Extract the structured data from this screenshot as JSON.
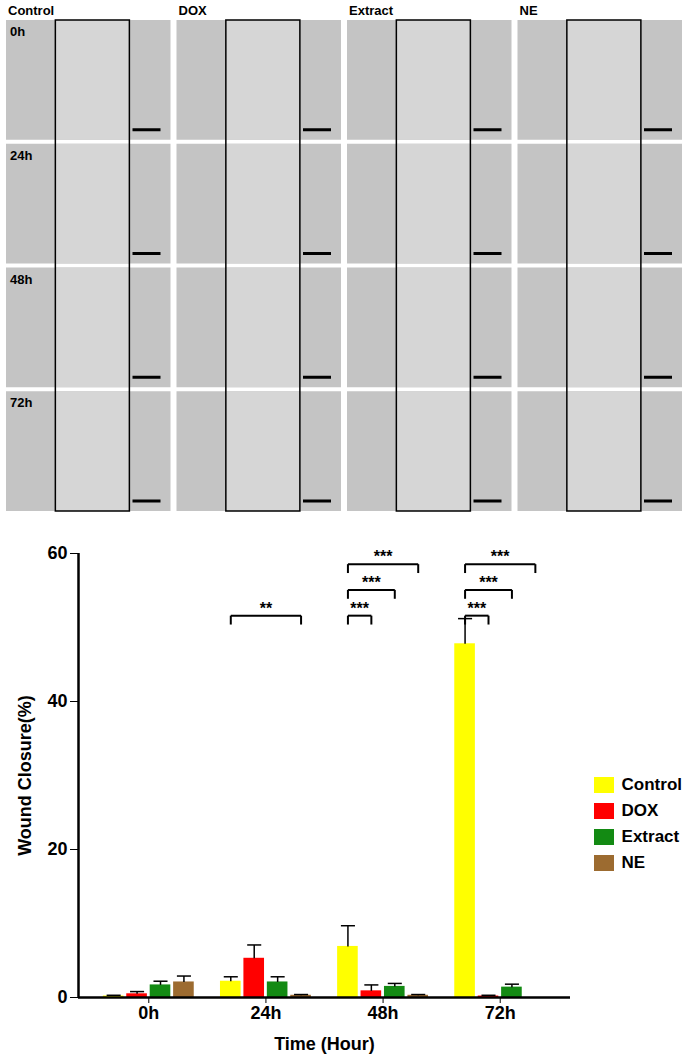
{
  "micrograph_panel": {
    "columns": [
      "Control",
      "DOX",
      "Extract",
      "NE"
    ],
    "rows": [
      "0h",
      "24h",
      "48h",
      "72h"
    ]
  },
  "chart_data": {
    "type": "bar",
    "xlabel": "Time (Hour)",
    "ylabel": "Wound Closure(%)",
    "categories": [
      "0h",
      "24h",
      "48h",
      "72h"
    ],
    "series": [
      {
        "name": "Control",
        "color": "#ffff00",
        "values": [
          0.2,
          2.2,
          6.9,
          47.8
        ],
        "errors": [
          0.1,
          0.6,
          2.8,
          3.4
        ]
      },
      {
        "name": "DOX",
        "color": "#ff0000",
        "values": [
          0.5,
          5.3,
          0.9,
          0.2
        ],
        "errors": [
          0.3,
          1.8,
          0.8,
          0.1
        ]
      },
      {
        "name": "Extract",
        "color": "#138a13",
        "values": [
          1.7,
          2.1,
          1.5,
          1.4
        ],
        "errors": [
          0.5,
          0.7,
          0.4,
          0.4
        ]
      },
      {
        "name": "NE",
        "color": "#9c6b30",
        "values": [
          2.1,
          0.3,
          0.3,
          0
        ],
        "errors": [
          0.8,
          0.1,
          0.1,
          0
        ]
      }
    ],
    "ylim": [
      0,
      60
    ],
    "yticks": [
      0,
      20,
      40,
      60
    ],
    "legend": "right",
    "annotations": [
      {
        "category": "24h",
        "from": "Control",
        "to": "NE",
        "label": "**"
      },
      {
        "category": "48h",
        "from": "Control",
        "to": "DOX",
        "label": "***"
      },
      {
        "category": "48h",
        "from": "Control",
        "to": "Extract",
        "label": "***"
      },
      {
        "category": "48h",
        "from": "Control",
        "to": "NE",
        "label": "***"
      },
      {
        "category": "72h",
        "from": "Control",
        "to": "DOX",
        "label": "***"
      },
      {
        "category": "72h",
        "from": "Control",
        "to": "Extract",
        "label": "***"
      },
      {
        "category": "72h",
        "from": "Control",
        "to": "NE",
        "label": "***"
      }
    ]
  }
}
